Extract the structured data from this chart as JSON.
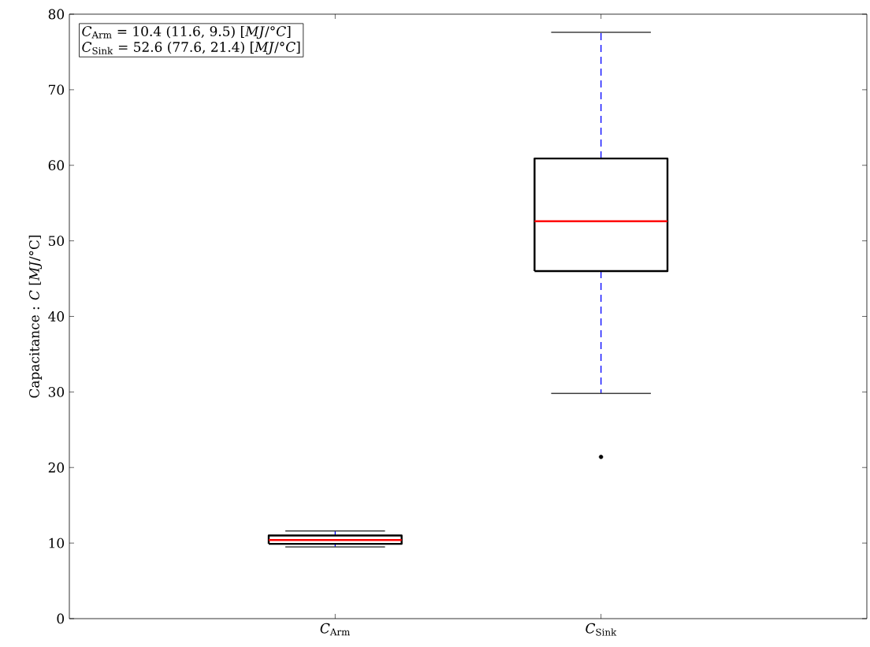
{
  "chart_data": {
    "type": "box",
    "ylabel": "Capacitance : *C* [*MJ*/°C]",
    "categories": [
      "*C*$_{Arm}$",
      "*C*$_{Sink}$"
    ],
    "boxes": [
      {
        "low": 9.5,
        "q1": 9.9,
        "median": 10.4,
        "q3": 11.0,
        "high": 11.6
      },
      {
        "low": 29.8,
        "q1": 46.0,
        "median": 52.6,
        "q3": 60.9,
        "high": 77.6,
        "outliers": [
          21.4
        ]
      }
    ],
    "ylim": [
      0,
      80
    ],
    "yticks": [
      0,
      10,
      20,
      30,
      40,
      50,
      60,
      70,
      80
    ],
    "annotations": [
      "*C*$_{Arm}$ = 10.4 (11.6, 9.5) [*MJ*/°*C*]",
      "*C*$_{Sink}$ = 52.6 (77.6, 21.4) [*MJ*/°*C*]"
    ]
  }
}
